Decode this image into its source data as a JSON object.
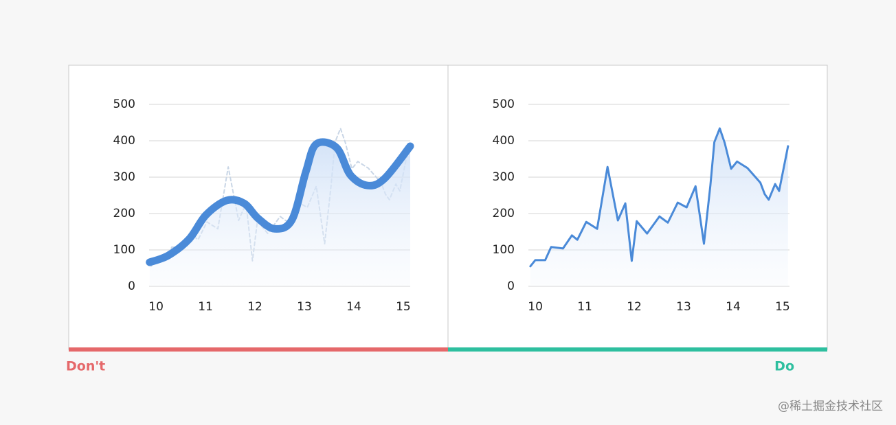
{
  "chart_data": [
    {
      "type": "line",
      "verdict": "Don't",
      "verdict_color": "#e5686a",
      "xlim": [
        9.86,
        15.14
      ],
      "ylim": [
        0,
        500
      ],
      "xticks": [
        10,
        11,
        12,
        13,
        14,
        15
      ],
      "yticks": [
        0,
        100,
        200,
        300,
        400,
        500
      ],
      "grid": true,
      "area": true,
      "series": [
        {
          "color": "#c9d6e6",
          "dashed": true,
          "width": 2,
          "smooth": false,
          "x": [
            9.9,
            10.0,
            10.2,
            10.32,
            10.56,
            10.74,
            10.85,
            11.03,
            11.25,
            11.46,
            11.67,
            11.82,
            11.95,
            12.05,
            12.26,
            12.51,
            12.68,
            12.88,
            13.06,
            13.24,
            13.41,
            13.54,
            13.62,
            13.73,
            13.83,
            13.96,
            14.08,
            14.29,
            14.55,
            14.64,
            14.72,
            14.85,
            14.93,
            15.11
          ],
          "values": [
            55,
            72,
            72,
            108,
            104,
            140,
            128,
            177,
            158,
            328,
            181,
            228,
            70,
            179,
            145,
            192,
            175,
            230,
            217,
            275,
            117,
            277,
            396,
            434,
            394,
            323,
            343,
            325,
            285,
            253,
            238,
            281,
            262,
            385
          ]
        },
        {
          "color": "#4a8ad8",
          "dashed": false,
          "width": 11,
          "smooth": true,
          "x": [
            9.87,
            10.25,
            10.67,
            11.01,
            11.43,
            11.78,
            12.06,
            12.4,
            12.75,
            13.03,
            13.24,
            13.65,
            13.93,
            14.28,
            14.62,
            15.14
          ],
          "values": [
            66,
            85,
            130,
            196,
            236,
            228,
            187,
            158,
            183,
            315,
            391,
            381,
            306,
            277,
            296,
            385
          ]
        }
      ]
    },
    {
      "type": "line",
      "verdict": "Do",
      "verdict_color": "#2ebf9f",
      "xlim": [
        9.86,
        15.14
      ],
      "ylim": [
        0,
        500
      ],
      "xticks": [
        10,
        11,
        12,
        13,
        14,
        15
      ],
      "yticks": [
        0,
        100,
        200,
        300,
        400,
        500
      ],
      "grid": true,
      "area": true,
      "series": [
        {
          "color": "#4a8ad8",
          "dashed": false,
          "width": 3,
          "smooth": false,
          "x": [
            9.9,
            10.0,
            10.2,
            10.32,
            10.56,
            10.74,
            10.85,
            11.03,
            11.25,
            11.46,
            11.67,
            11.82,
            11.95,
            12.05,
            12.26,
            12.51,
            12.68,
            12.88,
            13.06,
            13.24,
            13.41,
            13.54,
            13.62,
            13.73,
            13.83,
            13.96,
            14.08,
            14.29,
            14.55,
            14.64,
            14.72,
            14.85,
            14.93,
            15.11
          ],
          "values": [
            55,
            72,
            72,
            108,
            104,
            140,
            128,
            177,
            158,
            328,
            181,
            228,
            70,
            179,
            145,
            192,
            175,
            230,
            217,
            275,
            117,
            277,
            396,
            434,
            394,
            323,
            343,
            325,
            285,
            253,
            238,
            281,
            262,
            385
          ]
        }
      ]
    }
  ],
  "watermark": "@稀土掘金技术社区"
}
